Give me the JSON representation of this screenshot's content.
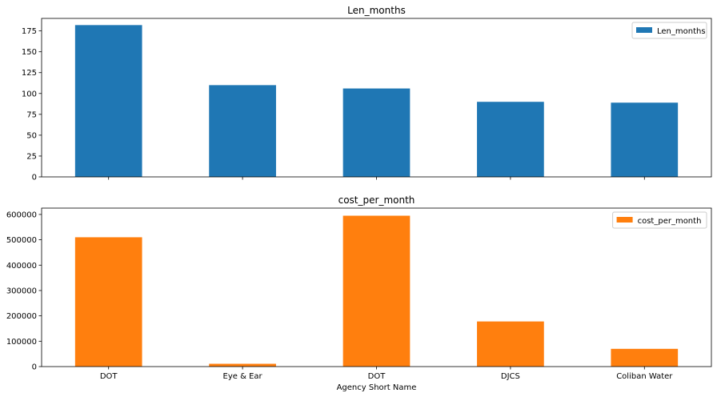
{
  "chart_data": [
    {
      "type": "bar",
      "title": "Len_months",
      "categories": [
        "DOT",
        "Eye & Ear",
        "DOT",
        "DJCS",
        "Coliban Water"
      ],
      "series": [
        {
          "name": "Len_months",
          "color": "#1f77b4",
          "values": [
            182,
            110,
            106,
            90,
            89
          ]
        }
      ],
      "ylim": [
        0,
        190
      ],
      "yticks": [
        0,
        25,
        50,
        75,
        100,
        125,
        150,
        175
      ],
      "ytick_labels": [
        "0",
        "25",
        "50",
        "75",
        "100",
        "125",
        "150",
        "175"
      ],
      "xlabel": "",
      "show_xtick_labels": false,
      "legend": "top-right",
      "grid": false
    },
    {
      "type": "bar",
      "title": "cost_per_month",
      "categories": [
        "DOT",
        "Eye & Ear",
        "DOT",
        "DJCS",
        "Coliban Water"
      ],
      "series": [
        {
          "name": "cost_per_month",
          "color": "#ff7f0e",
          "values": [
            510000,
            11000,
            595000,
            178000,
            70000
          ]
        }
      ],
      "ylim": [
        0,
        625000
      ],
      "yticks": [
        0,
        100000,
        200000,
        300000,
        400000,
        500000,
        600000
      ],
      "ytick_labels": [
        "0",
        "100000",
        "200000",
        "300000",
        "400000",
        "500000",
        "600000"
      ],
      "xlabel": "Agency Short Name",
      "show_xtick_labels": true,
      "legend": "top-right",
      "grid": false
    }
  ]
}
